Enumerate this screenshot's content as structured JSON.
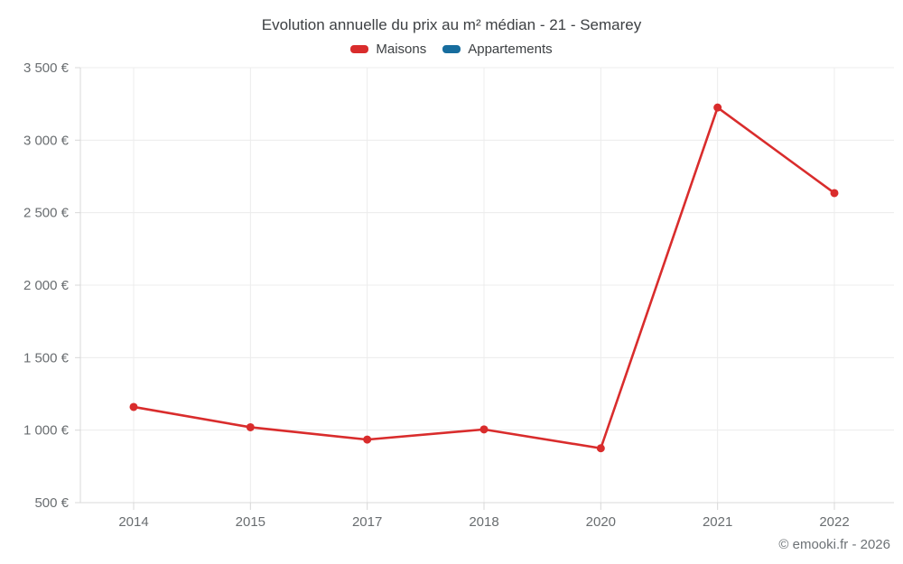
{
  "title": "Evolution annuelle du prix au m² médian - 21 - Semarey",
  "legend": [
    {
      "label": "Maisons",
      "color": "#d92c2c"
    },
    {
      "label": "Appartements",
      "color": "#176d9e"
    }
  ],
  "copyright": "© emooki.fr - 2026",
  "colors": {
    "maisons": "#d92c2c",
    "appartements": "#176d9e",
    "gridline": "#ececec",
    "axis": "#d8d8d8",
    "tick_label": "#696d70"
  },
  "chart_data": {
    "type": "line",
    "title": "Evolution annuelle du prix au m² médian - 21 - Semarey",
    "x": [
      "2014",
      "2015",
      "2017",
      "2018",
      "2020",
      "2021",
      "2022"
    ],
    "series": [
      {
        "name": "Maisons",
        "color": "#d92c2c",
        "values": [
          1160,
          1020,
          935,
          1005,
          875,
          3225,
          2635
        ]
      },
      {
        "name": "Appartements",
        "color": "#176d9e",
        "values": []
      }
    ],
    "y_ticks": [
      {
        "value": 500,
        "label": "500 €"
      },
      {
        "value": 1000,
        "label": "1 000 €"
      },
      {
        "value": 1500,
        "label": "1 500 €"
      },
      {
        "value": 2000,
        "label": "2 000 €"
      },
      {
        "value": 2500,
        "label": "2 500 €"
      },
      {
        "value": 3000,
        "label": "3 000 €"
      },
      {
        "value": 3500,
        "label": "3 500 €"
      }
    ],
    "ylim": [
      500,
      3500
    ],
    "xlabel": "",
    "ylabel": "",
    "grid": true,
    "legend_position": "top"
  }
}
